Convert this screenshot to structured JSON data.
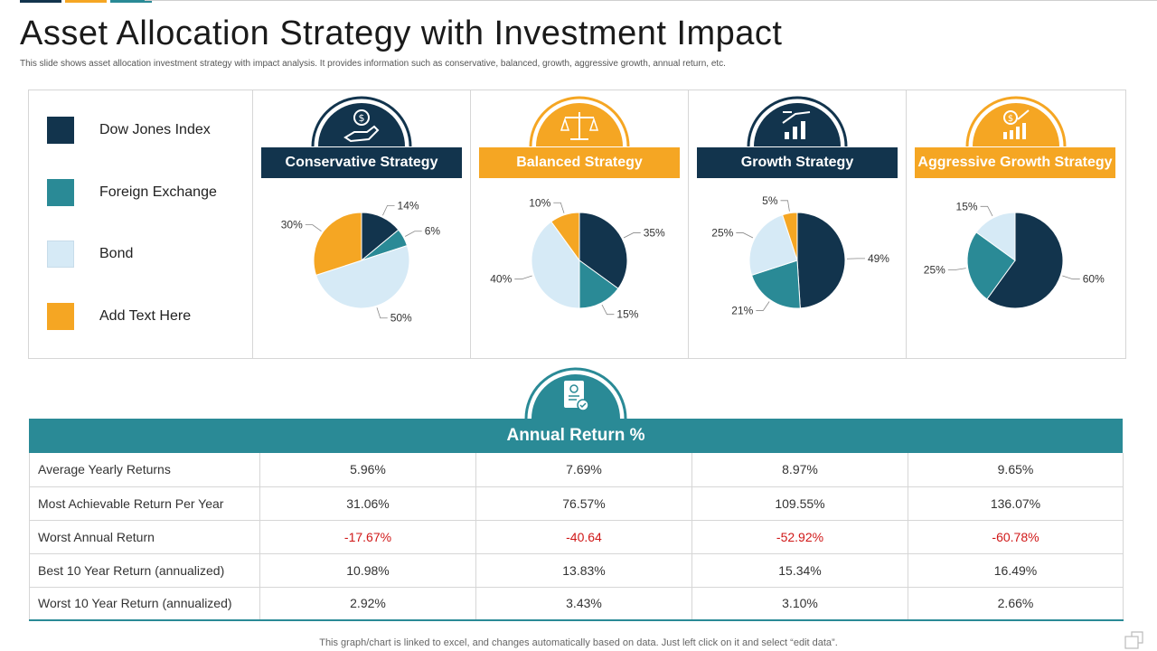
{
  "colors": {
    "navy": "#12344d",
    "teal": "#2a8a96",
    "light_blue": "#d6eaf6",
    "orange": "#f5a623",
    "negative_red": "#d01818"
  },
  "slide": {
    "title": "Asset Allocation Strategy with Investment Impact",
    "subtitle": "This slide shows asset allocation investment strategy with impact analysis. It provides information such as conservative, balanced, growth, aggressive growth, annual return, etc.",
    "footer": "This graph/chart is linked to excel, and changes automatically based on data. Just left click on it and select “edit data”."
  },
  "legend": [
    {
      "label": "Dow Jones Index",
      "color": "#12344d"
    },
    {
      "label": "Foreign Exchange",
      "color": "#2a8a96"
    },
    {
      "label": "Bond",
      "color": "#d6eaf6"
    },
    {
      "label": "Add Text Here",
      "color": "#f5a623"
    }
  ],
  "strategies": [
    {
      "name": "Conservative Strategy",
      "bar_color": "#12344d",
      "dome_color": "#12344d",
      "icon": "dollar-hand-icon"
    },
    {
      "name": "Balanced Strategy",
      "bar_color": "#f5a623",
      "dome_color": "#f5a623",
      "icon": "scales-icon"
    },
    {
      "name": "Growth Strategy",
      "bar_color": "#12344d",
      "dome_color": "#12344d",
      "icon": "growth-chart-icon"
    },
    {
      "name": "Aggressive Growth Strategy",
      "bar_color": "#f5a623",
      "dome_color": "#f5a623",
      "icon": "money-growth-icon"
    }
  ],
  "chart_data": [
    {
      "type": "pie",
      "title": "Conservative Strategy",
      "categories": [
        "Dow Jones Index",
        "Foreign Exchange",
        "Bond",
        "Add Text Here"
      ],
      "values": [
        14,
        6,
        50,
        30
      ],
      "labels": [
        "14%",
        "6%",
        "50%",
        "30%"
      ]
    },
    {
      "type": "pie",
      "title": "Balanced Strategy",
      "categories": [
        "Dow Jones Index",
        "Foreign Exchange",
        "Bond",
        "Add Text Here"
      ],
      "values": [
        35,
        15,
        40,
        10
      ],
      "labels": [
        "35%",
        "15%",
        "40%",
        "10%"
      ]
    },
    {
      "type": "pie",
      "title": "Growth Strategy",
      "categories": [
        "Dow Jones Index",
        "Foreign Exchange",
        "Bond",
        "Add Text Here"
      ],
      "values": [
        49,
        21,
        25,
        5
      ],
      "labels": [
        "49%",
        "21%",
        "25%",
        "5%"
      ]
    },
    {
      "type": "pie",
      "title": "Aggressive Growth Strategy",
      "categories": [
        "Dow Jones Index",
        "Foreign Exchange",
        "Bond",
        "Add Text Here"
      ],
      "values": [
        60,
        25,
        15,
        0
      ],
      "labels": [
        "60%",
        "25%",
        "15%",
        ""
      ]
    }
  ],
  "annual_return": {
    "header": "Annual Return %",
    "icon": "document-check-icon",
    "rows": [
      {
        "label": "Average Yearly Returns",
        "values": [
          "5.96%",
          "7.69%",
          "8.97%",
          "9.65%"
        ],
        "negative": false
      },
      {
        "label": "Most Achievable Return Per Year",
        "values": [
          "31.06%",
          "76.57%",
          "109.55%",
          "136.07%"
        ],
        "negative": false
      },
      {
        "label": "Worst Annual Return",
        "values": [
          "-17.67%",
          "-40.64",
          "-52.92%",
          "-60.78%"
        ],
        "negative": true
      },
      {
        "label": "Best 10 Year Return (annualized)",
        "values": [
          "10.98%",
          "13.83%",
          "15.34%",
          "16.49%"
        ],
        "negative": false
      },
      {
        "label": "Worst 10 Year Return (annualized)",
        "values": [
          "2.92%",
          "3.43%",
          "3.10%",
          "2.66%"
        ],
        "negative": false
      }
    ]
  }
}
